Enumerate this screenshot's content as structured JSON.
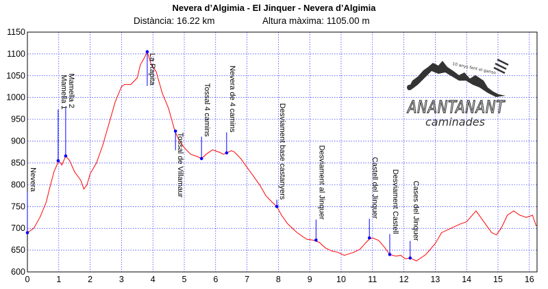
{
  "header": {
    "title": "Nevera d’Algimia - El Jinquer - Nevera d’Algimia",
    "distance": "Distància: 16.22 km",
    "max_altitude": "Altura màxima: 1105.00 m"
  },
  "logo": {
    "brand": "ANANTANANT",
    "tagline": "caminades",
    "small_text": "10 anys fent el ganso"
  },
  "colors": {
    "profile_line": "#ff0000",
    "waypoint": "#0000ff",
    "grid": "#0000ff",
    "logo": "#333333"
  },
  "chart_data": {
    "type": "line",
    "title": "Nevera d’Algimia - El Jinquer - Nevera d’Algimia",
    "xlabel": "",
    "ylabel": "",
    "xlim": [
      0,
      16.22
    ],
    "ylim": [
      600,
      1150
    ],
    "x_ticks": [
      0,
      1,
      2,
      3,
      4,
      5,
      6,
      7,
      8,
      9,
      10,
      11,
      12,
      13,
      14,
      15,
      16
    ],
    "y_ticks": [
      600,
      650,
      700,
      750,
      800,
      850,
      900,
      950,
      1000,
      1050,
      1100,
      1150
    ],
    "grid": true,
    "series": [
      {
        "x": [
          0,
          0.2,
          0.4,
          0.6,
          0.7,
          0.85,
          1.0,
          1.1,
          1.22,
          1.35,
          1.5,
          1.7,
          1.8,
          1.9,
          2.0,
          2.2,
          2.4,
          2.6,
          2.8,
          3.0,
          3.1,
          3.3,
          3.5,
          3.6,
          3.72,
          3.82,
          3.95,
          4.1,
          4.3,
          4.5,
          4.7,
          4.85,
          5.0,
          5.2,
          5.4,
          5.55,
          5.7,
          5.9,
          6.1,
          6.25,
          6.35,
          6.5,
          6.6,
          6.8,
          7.0,
          7.2,
          7.4,
          7.6,
          7.8,
          7.95,
          8.1,
          8.3,
          8.6,
          8.9,
          9.1,
          9.3,
          9.5,
          9.7,
          9.9,
          10.1,
          10.4,
          10.6,
          10.8,
          10.9,
          11.0,
          11.2,
          11.4,
          11.55,
          11.75,
          11.9,
          12.05,
          12.2,
          12.4,
          12.7,
          13.0,
          13.2,
          13.5,
          13.8,
          14.0,
          14.3,
          14.5,
          14.8,
          14.95,
          15.1,
          15.3,
          15.5,
          15.7,
          15.9,
          16.1,
          16.22
        ],
        "y": [
          690,
          700,
          725,
          760,
          790,
          830,
          855,
          845,
          866,
          855,
          830,
          810,
          790,
          800,
          825,
          850,
          890,
          940,
          990,
          1025,
          1030,
          1030,
          1045,
          1075,
          1090,
          1105,
          1075,
          1060,
          1010,
          975,
          923,
          900,
          885,
          870,
          865,
          860,
          870,
          880,
          875,
          870,
          873,
          878,
          875,
          860,
          840,
          820,
          800,
          775,
          760,
          750,
          730,
          710,
          690,
          675,
          673,
          668,
          655,
          648,
          645,
          638,
          645,
          652,
          668,
          675,
          678,
          672,
          655,
          640,
          636,
          638,
          630,
          632,
          625,
          640,
          665,
          690,
          700,
          710,
          715,
          740,
          720,
          690,
          685,
          700,
          730,
          740,
          730,
          725,
          730,
          705
        ]
      }
    ],
    "waypoints": [
      {
        "name": "Nevera",
        "x": 0.0,
        "y": 690
      },
      {
        "name": "Mamella 1",
        "x": 0.98,
        "y": 855
      },
      {
        "name": "Mamella 2",
        "x": 1.22,
        "y": 866
      },
      {
        "name": "La Rapita",
        "x": 3.82,
        "y": 1105
      },
      {
        "name": "Tossal de Villamaur",
        "x": 4.72,
        "y": 923
      },
      {
        "name": "Tossal 4 camins",
        "x": 5.55,
        "y": 860
      },
      {
        "name": "Nevera de 4 camins",
        "x": 6.35,
        "y": 873
      },
      {
        "name": "Desviament base castanyers",
        "x": 7.95,
        "y": 750
      },
      {
        "name": "Desviament al Jinquer",
        "x": 9.2,
        "y": 673
      },
      {
        "name": "Castell del Jinquer",
        "x": 10.9,
        "y": 678
      },
      {
        "name": "Desviament Castell",
        "x": 11.55,
        "y": 640
      },
      {
        "name": "Cases del Jinquer",
        "x": 12.2,
        "y": 632
      }
    ]
  }
}
